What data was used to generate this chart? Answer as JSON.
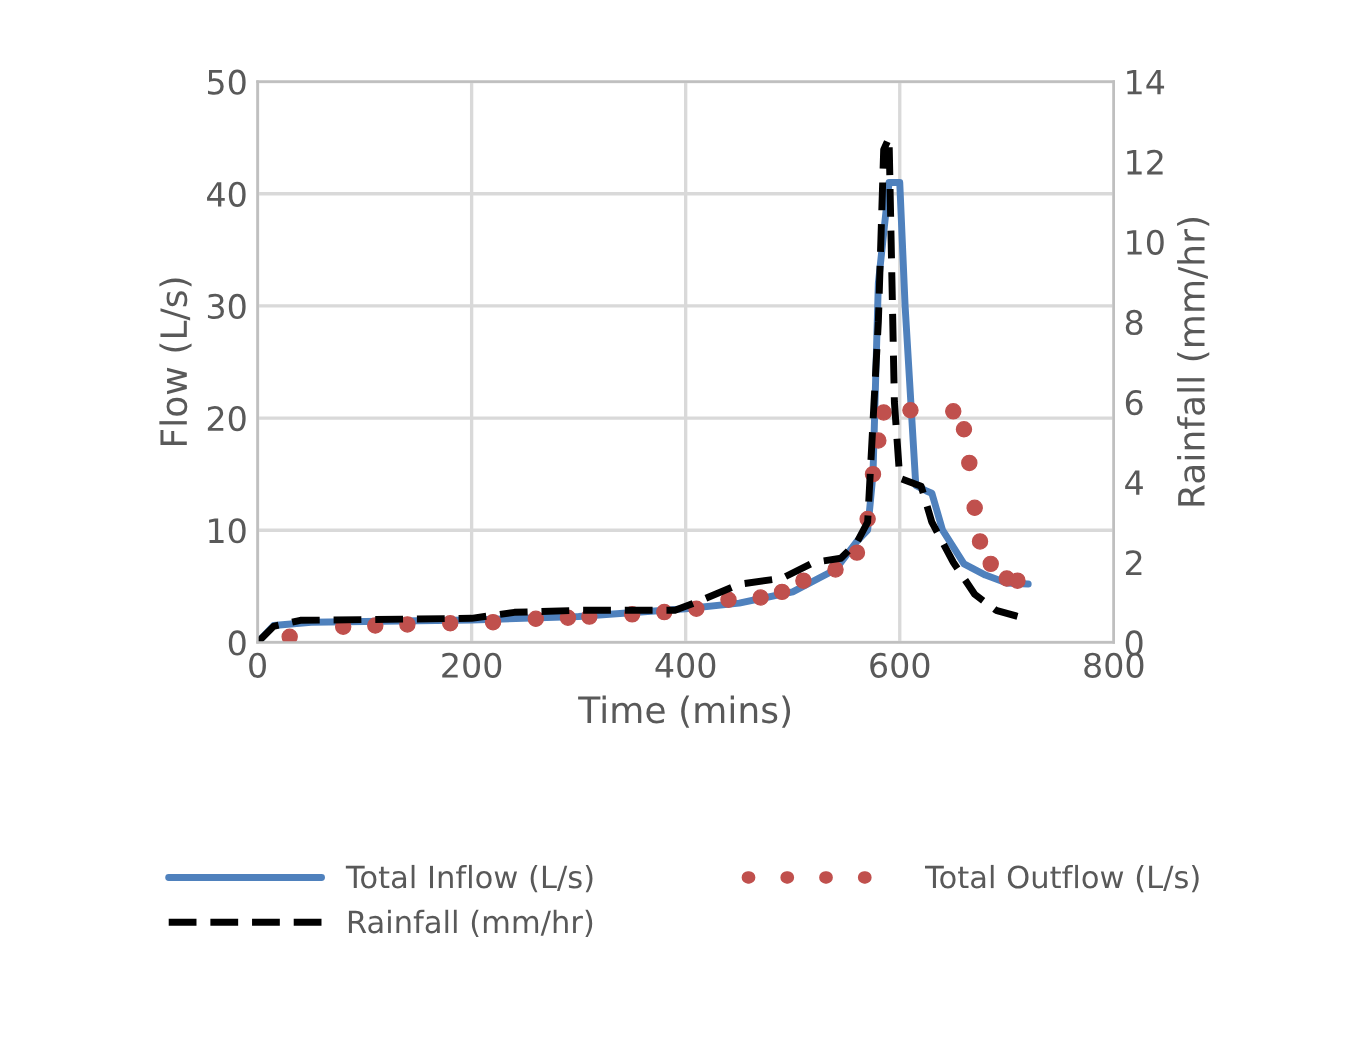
{
  "chart_data": {
    "type": "line",
    "xlabel": "Time (mins)",
    "ylabel": "Flow (L/s)",
    "y2label": "Rainfall (mm/hr)",
    "xlim": [
      0,
      800
    ],
    "xticks": [
      0,
      200,
      400,
      600,
      800
    ],
    "ylim": [
      0,
      50
    ],
    "yticks": [
      0,
      10,
      20,
      30,
      40,
      50
    ],
    "y2lim": [
      0,
      14
    ],
    "y2ticks": [
      0,
      2,
      4,
      6,
      8,
      10,
      12,
      14
    ],
    "grid": true,
    "legend": "bottom",
    "series": [
      {
        "name": "Total Inflow (L/s)",
        "color": "#4f81bd",
        "line_style": "solid",
        "x": [
          0,
          15,
          50,
          200,
          300,
          400,
          450,
          500,
          540,
          560,
          570,
          575,
          580,
          590,
          600,
          605,
          615,
          625,
          630,
          640,
          660,
          680,
          700,
          720
        ],
        "values": [
          0,
          1.5,
          1.8,
          2,
          2.3,
          3,
          3.5,
          4.5,
          6.5,
          9,
          10,
          15,
          32,
          41,
          41,
          30,
          14,
          13.5,
          13.3,
          10,
          7,
          6,
          5.3,
          5.2
        ]
      },
      {
        "name": "Total Outflow (L/s)",
        "color": "#c0504d",
        "type": "scatter",
        "marker": "circle",
        "x": [
          30,
          80,
          110,
          140,
          180,
          220,
          260,
          290,
          310,
          350,
          380,
          410,
          440,
          470,
          490,
          510,
          540,
          560,
          570,
          575,
          580,
          585,
          610,
          650,
          660,
          665,
          670,
          675,
          685,
          700,
          710
        ],
        "values": [
          0.5,
          1.4,
          1.5,
          1.6,
          1.7,
          1.8,
          2.1,
          2.2,
          2.3,
          2.5,
          2.7,
          3,
          3.8,
          4,
          4.5,
          5.5,
          6.5,
          8,
          11,
          15,
          18,
          20.5,
          20.7,
          20.6,
          19,
          16,
          12,
          9,
          7,
          5.7,
          5.5
        ]
      },
      {
        "name": "Rainfall (mm/hr)",
        "color": "#000000",
        "line_style": "dashed",
        "axis": "y2",
        "x": [
          0,
          15,
          40,
          200,
          240,
          300,
          390,
          410,
          450,
          490,
          520,
          545,
          560,
          570,
          580,
          585,
          590,
          595,
          600,
          610,
          620,
          630,
          650,
          670,
          690,
          710
        ],
        "values": [
          0,
          0.4,
          0.55,
          0.6,
          0.75,
          0.8,
          0.8,
          1.0,
          1.45,
          1.6,
          2.0,
          2.1,
          2.5,
          3.0,
          8,
          12.3,
          12.6,
          6,
          4.1,
          4.0,
          3.9,
          3,
          2,
          1.2,
          0.8,
          0.65
        ]
      }
    ]
  }
}
